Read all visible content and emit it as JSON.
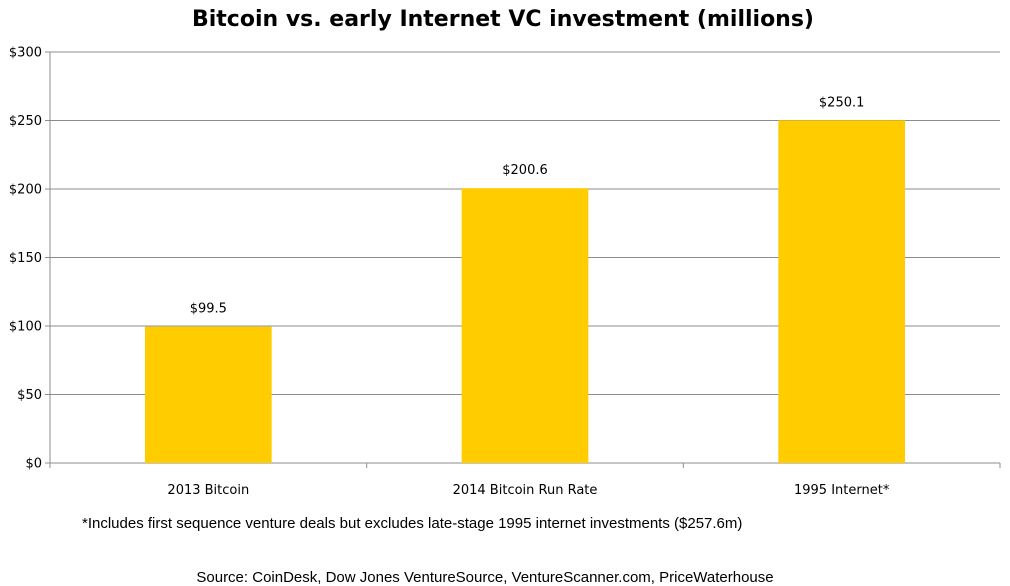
{
  "chart_data": {
    "type": "bar",
    "title": "Bitcoin vs. early Internet VC investment (millions)",
    "categories": [
      "2013 Bitcoin",
      "2014 Bitcoin Run Rate",
      "1995 Internet*"
    ],
    "values": [
      99.5,
      200.6,
      250.1
    ],
    "data_labels": [
      "$99.5",
      "$200.6",
      "$250.1"
    ],
    "yticks": [
      0,
      50,
      100,
      150,
      200,
      250,
      300
    ],
    "ytick_labels": [
      "$0",
      "$50",
      "$100",
      "$150",
      "$200",
      "$250",
      "$300"
    ],
    "ylim": [
      0,
      300
    ],
    "grid": true,
    "legend": "none",
    "bar_color": "#FFCC00"
  },
  "footnote": "*Includes first sequence venture deals but excludes late-stage 1995 internet investments ($257.6m)",
  "source": "Source: CoinDesk, Dow Jones VentureSource, VentureScanner.com, PriceWaterhouse"
}
